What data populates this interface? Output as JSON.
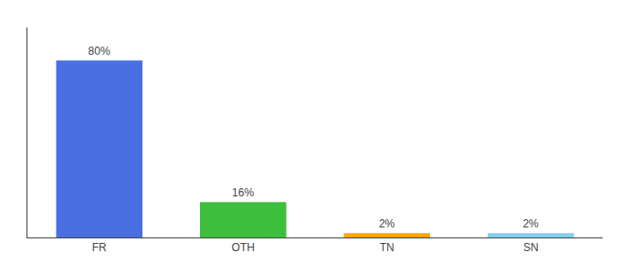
{
  "chart_data": {
    "type": "bar",
    "categories": [
      "FR",
      "OTH",
      "TN",
      "SN"
    ],
    "values": [
      80,
      16,
      2,
      2
    ],
    "value_labels": [
      "80%",
      "16%",
      "2%",
      "2%"
    ],
    "colors": [
      "#4A6FE3",
      "#3DBF3D",
      "#FFA500",
      "#87CEEB"
    ],
    "ylim": [
      0,
      95
    ],
    "grid": false,
    "data_labels": true,
    "tick_labels": "x"
  }
}
